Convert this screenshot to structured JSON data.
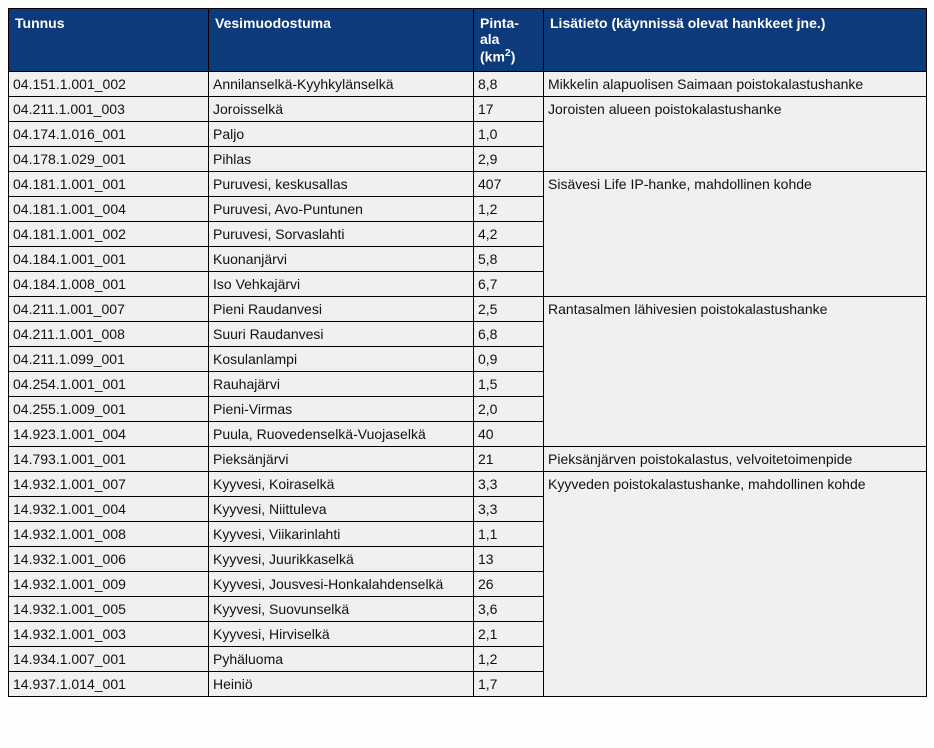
{
  "headers": {
    "tunnus": "Tunnus",
    "vesi": "Vesimuodostuma",
    "pinta_pre": "Pinta-ala (km",
    "pinta_sup": "2",
    "pinta_post": ")",
    "lisa": "Lisätieto (käynnissä olevat hankkeet jne.)"
  },
  "colors": {
    "header_bg": "#0d3a7a",
    "header_text": "#ffffff",
    "cell_bg": "#f0f0f0",
    "border": "#000000"
  },
  "columns": {
    "tunnus_width": 200,
    "vesi_width": 265,
    "pinta_width": 70,
    "lisa_width": 383
  },
  "rows": [
    {
      "tunnus": "04.151.1.001_002",
      "vesi": "Annilanselkä-Kyyhkylänselkä",
      "pinta": "8,8",
      "lisa": "Mikkelin alapuolisen Saimaan poistokalastushanke",
      "lisa_span": 1
    },
    {
      "tunnus": "04.211.1.001_003",
      "vesi": "Joroisselkä",
      "pinta": "17",
      "lisa": "Joroisten alueen poistokalastushanke",
      "lisa_span": 3
    },
    {
      "tunnus": "04.174.1.016_001",
      "vesi": "Paljo",
      "pinta": "1,0"
    },
    {
      "tunnus": "04.178.1.029_001",
      "vesi": "Pihlas",
      "pinta": "2,9"
    },
    {
      "tunnus": "04.181.1.001_001",
      "vesi": "Puruvesi, keskusallas",
      "pinta": "407",
      "lisa": "Sisävesi Life IP-hanke, mahdollinen kohde",
      "lisa_span": 5
    },
    {
      "tunnus": "04.181.1.001_004",
      "vesi": "Puruvesi, Avo-Puntunen",
      "pinta": "1,2"
    },
    {
      "tunnus": "04.181.1.001_002",
      "vesi": "Puruvesi, Sorvaslahti",
      "pinta": "4,2"
    },
    {
      "tunnus": "04.184.1.001_001",
      "vesi": "Kuonanjärvi",
      "pinta": "5,8"
    },
    {
      "tunnus": "04.184.1.008_001",
      "vesi": "Iso Vehkajärvi",
      "pinta": "6,7"
    },
    {
      "tunnus": "04.211.1.001_007",
      "vesi": "Pieni Raudanvesi",
      "pinta": "2,5",
      "lisa": "Rantasalmen lähivesien poistokalastushanke",
      "lisa_span": 6
    },
    {
      "tunnus": "04.211.1.001_008",
      "vesi": "Suuri Raudanvesi",
      "pinta": "6,8"
    },
    {
      "tunnus": "04.211.1.099_001",
      "vesi": "Kosulanlampi",
      "pinta": "0,9"
    },
    {
      "tunnus": "04.254.1.001_001",
      "vesi": "Rauhajärvi",
      "pinta": "1,5"
    },
    {
      "tunnus": "04.255.1.009_001",
      "vesi": "Pieni-Virmas",
      "pinta": "2,0"
    },
    {
      "tunnus": "14.923.1.001_004",
      "vesi": "Puula, Ruovedenselkä-Vuojaselkä",
      "pinta": "40"
    },
    {
      "tunnus": "14.793.1.001_001",
      "vesi": "Pieksänjärvi",
      "pinta": "21",
      "lisa": "Pieksänjärven poistokalastus, velvoitetoimenpide",
      "lisa_span": 1
    },
    {
      "tunnus": "14.932.1.001_007",
      "vesi": "Kyyvesi, Koiraselkä",
      "pinta": "3,3",
      "lisa": "Kyyveden poistokalastushanke, mahdollinen kohde",
      "lisa_span": 9
    },
    {
      "tunnus": "14.932.1.001_004",
      "vesi": "Kyyvesi, Niittuleva",
      "pinta": "3,3"
    },
    {
      "tunnus": "14.932.1.001_008",
      "vesi": "Kyyvesi, Viikarinlahti",
      "pinta": "1,1"
    },
    {
      "tunnus": "14.932.1.001_006",
      "vesi": "Kyyvesi, Juurikkaselkä",
      "pinta": "13"
    },
    {
      "tunnus": "14.932.1.001_009",
      "vesi": "Kyyvesi, Jousvesi-Honkalahdenselkä",
      "pinta": "26"
    },
    {
      "tunnus": "14.932.1.001_005",
      "vesi": "Kyyvesi, Suovunselkä",
      "pinta": "3,6"
    },
    {
      "tunnus": "14.932.1.001_003",
      "vesi": "Kyyvesi, Hirviselkä",
      "pinta": "2,1"
    },
    {
      "tunnus": "14.934.1.007_001",
      "vesi": "Pyhäluoma",
      "pinta": "1,2"
    },
    {
      "tunnus": "14.937.1.014_001",
      "vesi": "Heiniö",
      "pinta": "1,7"
    }
  ]
}
